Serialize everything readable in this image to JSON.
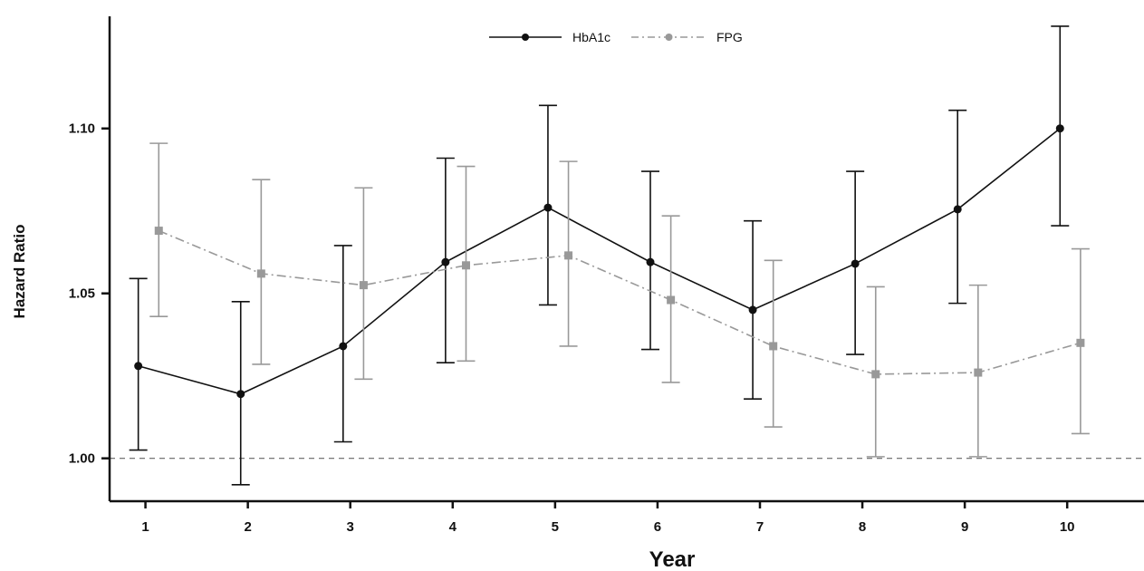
{
  "chart_data": {
    "type": "line",
    "title": "",
    "xlabel": "Year",
    "ylabel": "Hazard Ratio",
    "x": [
      1,
      2,
      3,
      4,
      5,
      6,
      7,
      8,
      9,
      10
    ],
    "x_tick_labels": [
      "1",
      "2",
      "3",
      "4",
      "5",
      "6",
      "7",
      "8",
      "9",
      "10"
    ],
    "y_ticks": [
      1.0,
      1.05,
      1.1
    ],
    "y_tick_labels": [
      "1.00",
      "1.05",
      "1.10"
    ],
    "ylim": [
      0.987,
      1.134
    ],
    "xlim": [
      0.65,
      10.75
    ],
    "reference_line": 1.0,
    "grid": false,
    "legend_position": "top-center",
    "series": [
      {
        "name": "HbA1c",
        "color": "#111111",
        "line_style": "solid",
        "marker": "circle",
        "x_offset": -0.07,
        "values": [
          1.028,
          1.0195,
          1.034,
          1.0595,
          1.076,
          1.0595,
          1.045,
          1.059,
          1.0755,
          1.1
        ],
        "lower": [
          1.0025,
          0.992,
          1.005,
          1.029,
          1.0465,
          1.033,
          1.018,
          1.0315,
          1.047,
          1.0705
        ],
        "upper": [
          1.0545,
          1.0475,
          1.0645,
          1.091,
          1.107,
          1.087,
          1.072,
          1.087,
          1.1055,
          1.131
        ]
      },
      {
        "name": "FPG",
        "color": "#999999",
        "line_style": "dashdot",
        "marker": "square",
        "x_offset": 0.13,
        "values": [
          1.069,
          1.056,
          1.0525,
          1.0585,
          1.0615,
          1.048,
          1.034,
          1.0255,
          1.026,
          1.035
        ],
        "lower": [
          1.043,
          1.0285,
          1.024,
          1.0295,
          1.034,
          1.023,
          1.0095,
          1.0005,
          1.0005,
          1.0075
        ],
        "upper": [
          1.0955,
          1.0845,
          1.082,
          1.0885,
          1.09,
          1.0735,
          1.06,
          1.052,
          1.0525,
          1.0635
        ]
      }
    ]
  }
}
